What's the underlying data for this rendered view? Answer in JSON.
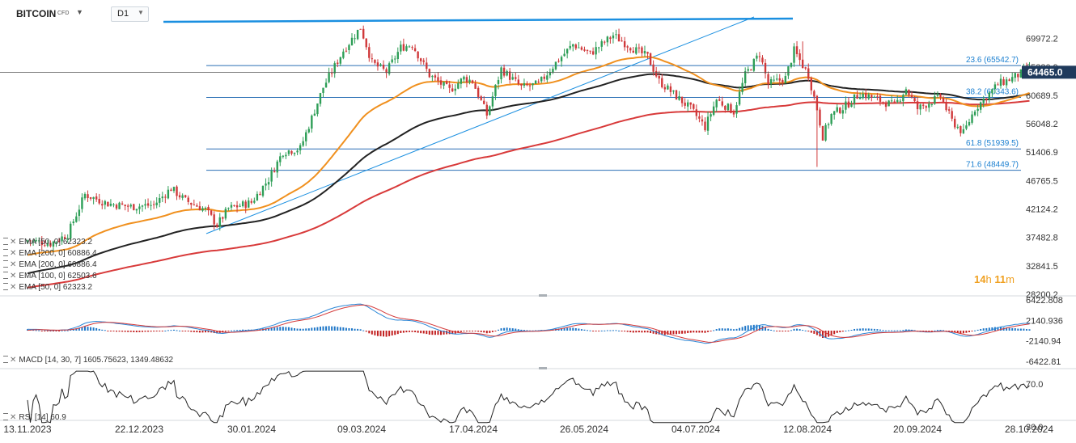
{
  "toolbar": {
    "symbol": "BITCOIN",
    "symbol_suffix": "CFD",
    "timeframe": "D1"
  },
  "price_axis": {
    "labels": [
      "69972.2",
      "65330.9",
      "60689.5",
      "56048.2",
      "51406.9",
      "46765.5",
      "42124.2",
      "37482.8",
      "32841.5",
      "28200.2"
    ],
    "current_price_label": "64465.0",
    "current_price": 64465.0
  },
  "macd_axis": {
    "labels": [
      "6422.808",
      "2140.936",
      "-2140.94",
      "-6422.81"
    ]
  },
  "rsi_axis": {
    "labels": [
      "70.0",
      "30.0"
    ]
  },
  "time_axis": {
    "labels": [
      "13.11.2023",
      "22.12.2023",
      "30.01.2024",
      "09.03.2024",
      "17.04.2024",
      "26.05.2024",
      "04.07.2024",
      "12.08.2024",
      "20.09.2024",
      "28.10.2024"
    ]
  },
  "legend": [
    {
      "name": "EMA",
      "params": "[50,  0]",
      "value": "62323.2"
    },
    {
      "name": "EMA",
      "params": "[200,  0]",
      "value": "60886.4"
    },
    {
      "name": "EMA",
      "params": "[200,  0]",
      "value": "60886.4"
    },
    {
      "name": "EMA",
      "params": "[100,  0]",
      "value": "62503.6"
    },
    {
      "name": "EMA",
      "params": "[50,  0]",
      "value": "62323.2"
    }
  ],
  "macd_legend": "MACD [14, 30, 7]  1605.75623,   1349.48632",
  "rsi_legend": "RSI [14]  60.9",
  "countdown": {
    "hours": "14",
    "h_unit": "h",
    "minutes": "11",
    "m_unit": "m"
  },
  "fibonacci": [
    {
      "label": "23.6 (65542.7)",
      "level": 65542.7
    },
    {
      "label": "38.2 (60343.6)",
      "level": 60343.6
    },
    {
      "label": "61.8 (51939.5)",
      "level": 51939.5
    },
    {
      "label": "71.6 (48449.7)",
      "level": 48449.7
    }
  ],
  "colors": {
    "candle_up": "#2e9e57",
    "candle_down": "#d0393b",
    "ema50": "#f0901e",
    "ema100": "#222222",
    "ema200": "#d83a3a",
    "trendline": "#1a8fe0",
    "fib": "#2a6fb5",
    "price_tag": "#1f3a5c",
    "macd_line": "#2a86d6",
    "signal_line": "#d43a3a",
    "hist_up": "#1f77c8",
    "hist_down": "#c21f1f",
    "rsi": "#222222"
  },
  "chart_data": {
    "type": "candlestick",
    "title": "BITCOIN CFD D1",
    "x_range": [
      "13.11.2023",
      "28.10.2024"
    ],
    "ylim": [
      28200.2,
      72300
    ],
    "closes_approx": [
      {
        "date": "13.11.2023",
        "close": 37000
      },
      {
        "date": "22.12.2023",
        "close": 43500
      },
      {
        "date": "30.01.2024",
        "close": 43300
      },
      {
        "date": "09.03.2024",
        "close": 69000
      },
      {
        "date": "17.04.2024",
        "close": 61000
      },
      {
        "date": "26.05.2024",
        "close": 69200
      },
      {
        "date": "04.07.2024",
        "close": 57500
      },
      {
        "date": "12.08.2024",
        "close": 59500
      },
      {
        "date": "20.09.2024",
        "close": 63200
      },
      {
        "date": "current",
        "close": 64465
      }
    ],
    "indicators": {
      "ema50": 62323.2,
      "ema100": 62503.6,
      "ema200": 60886.4,
      "macd": [
        1605.75623,
        1349.48632
      ],
      "rsi": 60.9
    }
  }
}
